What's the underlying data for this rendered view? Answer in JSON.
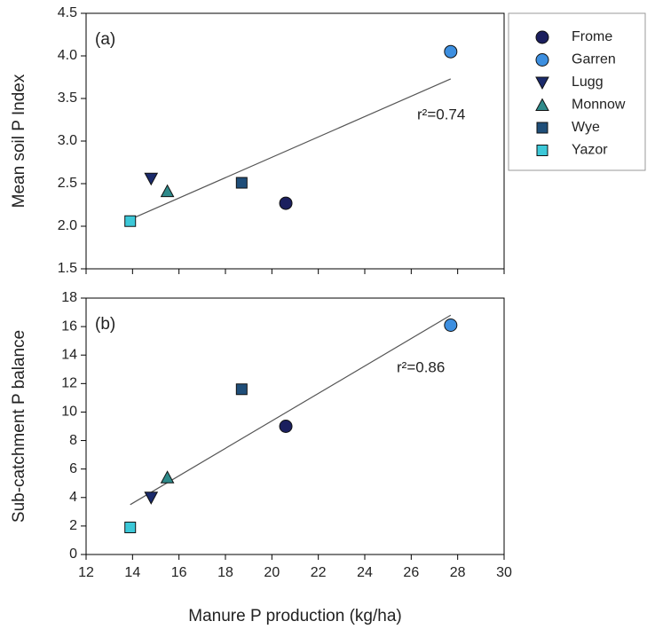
{
  "chart_data": [
    {
      "type": "scatter",
      "panel_label": "(a)",
      "ylabel": "Mean soil P Index",
      "annotation": "r²=0.74",
      "xlim": [
        12,
        30
      ],
      "xticks": [
        12,
        14,
        16,
        18,
        20,
        22,
        24,
        26,
        28,
        30
      ],
      "ylim": [
        1.5,
        4.5
      ],
      "yticks": [
        1.5,
        {
          "value": 2,
          "label": "2.0"
        },
        2.5,
        {
          "value": 3,
          "label": "3.0"
        },
        3.5,
        {
          "value": 4,
          "label": "4.0"
        },
        4.5
      ],
      "legend": "outside-right",
      "trendline": {
        "x": [
          13.9,
          27.7
        ],
        "y": [
          2.08,
          3.73
        ]
      },
      "series": [
        {
          "name": "Frome",
          "color": "#1b1f5e",
          "marker": "circle",
          "x": [
            20.6
          ],
          "values": [
            2.27
          ]
        },
        {
          "name": "Garren",
          "color": "#3d8fe0",
          "marker": "circle",
          "x": [
            27.7
          ],
          "values": [
            4.05
          ]
        },
        {
          "name": "Lugg",
          "color": "#1a2a6b",
          "marker": "triangle-down",
          "x": [
            14.8
          ],
          "values": [
            2.56
          ]
        },
        {
          "name": "Monnow",
          "color": "#2e8a8a",
          "marker": "triangle-up",
          "x": [
            15.5
          ],
          "values": [
            2.41
          ]
        },
        {
          "name": "Wye",
          "color": "#1f4e79",
          "marker": "square",
          "x": [
            18.7
          ],
          "values": [
            2.51
          ]
        },
        {
          "name": "Yazor",
          "color": "#3cc8d8",
          "marker": "square",
          "x": [
            13.9
          ],
          "values": [
            2.06
          ]
        }
      ]
    },
    {
      "type": "scatter",
      "panel_label": "(b)",
      "ylabel": "Sub-catchment P balance",
      "xlabel": "Manure P production (kg/ha)",
      "annotation": "r²=0.86",
      "xlim": [
        12,
        30
      ],
      "xticks": [
        12,
        14,
        16,
        18,
        20,
        22,
        24,
        26,
        28,
        30
      ],
      "ylim": [
        0,
        18
      ],
      "yticks": [
        0,
        2,
        4,
        6,
        8,
        10,
        12,
        14,
        16,
        18
      ],
      "trendline": {
        "x": [
          13.9,
          27.7
        ],
        "y": [
          3.5,
          16.8
        ]
      },
      "series": [
        {
          "color": "#1b1f5e",
          "marker": "circle",
          "x": [
            20.6
          ],
          "values": [
            9.0
          ]
        },
        {
          "color": "#3d8fe0",
          "marker": "circle",
          "x": [
            27.7
          ],
          "values": [
            16.1
          ]
        },
        {
          "color": "#1a2a6b",
          "marker": "triangle-down",
          "x": [
            14.8
          ],
          "values": [
            4.0
          ]
        },
        {
          "color": "#2e8a8a",
          "marker": "triangle-up",
          "x": [
            15.5
          ],
          "values": [
            5.4
          ]
        },
        {
          "color": "#1f4e79",
          "marker": "square",
          "x": [
            18.7
          ],
          "values": [
            11.6
          ]
        },
        {
          "color": "#3cc8d8",
          "marker": "square",
          "x": [
            13.9
          ],
          "values": [
            1.9
          ]
        }
      ]
    }
  ]
}
